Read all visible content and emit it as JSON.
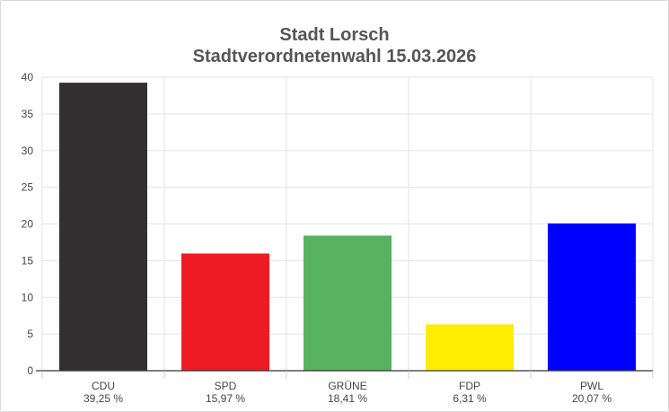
{
  "chart_data": {
    "type": "bar",
    "title": "Stadt Lorsch",
    "subtitle": "Stadtverordnetenwahl 15.03.2026",
    "categories": [
      "CDU",
      "SPD",
      "GRÜNE",
      "FDP",
      "PWL"
    ],
    "values": [
      39.25,
      15.97,
      18.41,
      6.31,
      20.07
    ],
    "value_labels": [
      "39,25 %",
      "15,97 %",
      "18,41 %",
      "6,31 %",
      "20,07 %"
    ],
    "colors": [
      "#323031",
      "#ed1c24",
      "#57b35f",
      "#ffed00",
      "#0000ff"
    ],
    "yticks": [
      0,
      5,
      10,
      15,
      20,
      25,
      30,
      35,
      40
    ],
    "ylim": [
      0,
      40
    ],
    "xlabel": "",
    "ylabel": "",
    "grid": true
  }
}
